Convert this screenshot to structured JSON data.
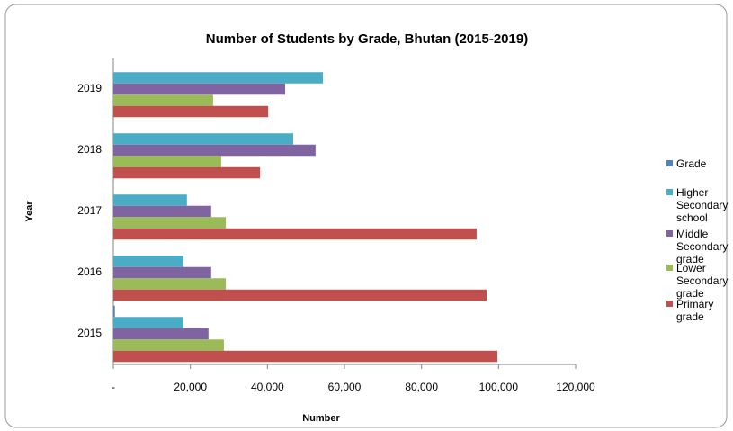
{
  "chart_data": {
    "type": "barh",
    "title": "Number of Students by Grade, Bhutan (2015-2019)",
    "xlabel": "Number",
    "ylabel": "Year",
    "categories": [
      "2015",
      "2016",
      "2017",
      "2018",
      "2019"
    ],
    "series": [
      {
        "name": "Grade",
        "color": "#4f81bd",
        "values": [
          400,
          0,
          0,
          0,
          0
        ]
      },
      {
        "name": "Higher Secondary school",
        "color": "#4bacc6",
        "values": [
          18200,
          18200,
          19100,
          46700,
          54400
        ]
      },
      {
        "name": "Middle Secondary grade",
        "color": "#8064a2",
        "values": [
          24700,
          25400,
          25400,
          52500,
          44600
        ]
      },
      {
        "name": "Lower Secondary grade",
        "color": "#9bbb59",
        "values": [
          28700,
          29200,
          29200,
          28000,
          25900
        ]
      },
      {
        "name": "Primary grade",
        "color": "#c0504d",
        "values": [
          99700,
          96900,
          94300,
          38100,
          40200
        ]
      }
    ],
    "xlim": [
      0,
      120000
    ],
    "xticks": [
      {
        "value": 0,
        "label": "-"
      },
      {
        "value": 20000,
        "label": "20,000"
      },
      {
        "value": 40000,
        "label": "40,000"
      },
      {
        "value": 60000,
        "label": "60,000"
      },
      {
        "value": 80000,
        "label": "80,000"
      },
      {
        "value": 100000,
        "label": "100,000"
      },
      {
        "value": 120000,
        "label": "120,000"
      }
    ],
    "legend": "right",
    "grid": false
  }
}
